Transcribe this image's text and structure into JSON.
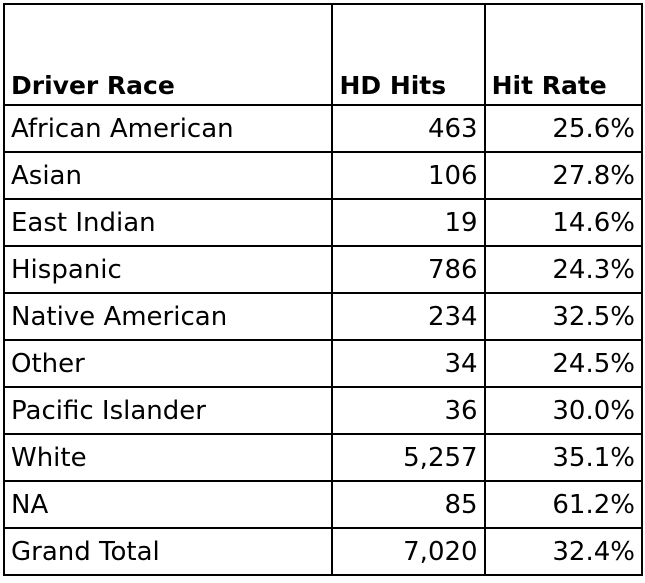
{
  "table": {
    "headers": [
      "Driver Race",
      "HD Hits",
      "Hit Rate"
    ],
    "rows": [
      {
        "race": "African American",
        "hits": "463",
        "rate": "25.6%"
      },
      {
        "race": "Asian",
        "hits": "106",
        "rate": "27.8%"
      },
      {
        "race": "East Indian",
        "hits": "19",
        "rate": "14.6%"
      },
      {
        "race": "Hispanic",
        "hits": "786",
        "rate": "24.3%"
      },
      {
        "race": "Native American",
        "hits": "234",
        "rate": "32.5%"
      },
      {
        "race": "Other",
        "hits": "34",
        "rate": "24.5%"
      },
      {
        "race": "Pacific Islander",
        "hits": "36",
        "rate": "30.0%"
      },
      {
        "race": "White",
        "hits": "5,257",
        "rate": "35.1%"
      },
      {
        "race": "NA",
        "hits": "85",
        "rate": "61.2%"
      },
      {
        "race": "Grand Total",
        "hits": "7,020",
        "rate": "32.4%"
      }
    ]
  }
}
